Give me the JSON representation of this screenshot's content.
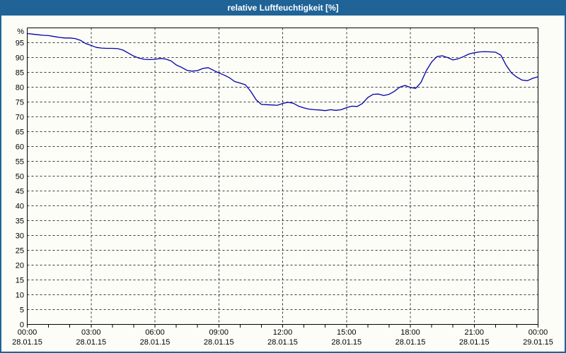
{
  "window": {
    "title": "relative Luftfeuchtigkeit [%]"
  },
  "colors": {
    "titlebar": "#1f6397",
    "frame": "#1f6397",
    "background": "#fdfdf8",
    "grid": "#3c3c3c",
    "axis": "#000000",
    "series": "#0000a8",
    "title_text": "#ffffff"
  },
  "chart_data": {
    "type": "line",
    "title": "relative Luftfeuchtigkeit [%]",
    "ylabel": "%",
    "ylim": [
      0,
      100
    ],
    "ytick_step": 5,
    "ytick_label_max": 95,
    "grid": "dashed",
    "legend": "none",
    "x_hours_range": [
      0,
      24
    ],
    "x_minor_tick_every_hours": 1,
    "x_major_ticks": [
      {
        "hour": 0,
        "time": "00:00",
        "date": "28.01.15"
      },
      {
        "hour": 3,
        "time": "03:00",
        "date": "28.01.15"
      },
      {
        "hour": 6,
        "time": "06:00",
        "date": "28.01.15"
      },
      {
        "hour": 9,
        "time": "09:00",
        "date": "28.01.15"
      },
      {
        "hour": 12,
        "time": "12:00",
        "date": "28.01.15"
      },
      {
        "hour": 15,
        "time": "15:00",
        "date": "28.01.15"
      },
      {
        "hour": 18,
        "time": "18:00",
        "date": "28.01.15"
      },
      {
        "hour": 21,
        "time": "21:00",
        "date": "28.01.15"
      },
      {
        "hour": 24,
        "time": "00:00",
        "date": "29.01.15"
      }
    ],
    "series": [
      {
        "name": "relative Luftfeuchtigkeit [%]",
        "color": "#0000a8",
        "points_hour_value": [
          [
            0,
            98.1
          ],
          [
            0.25,
            97.9
          ],
          [
            0.5,
            97.7
          ],
          [
            0.75,
            97.5
          ],
          [
            1,
            97.4
          ],
          [
            1.25,
            97.1
          ],
          [
            1.5,
            96.8
          ],
          [
            1.75,
            96.6
          ],
          [
            2,
            96.6
          ],
          [
            2.25,
            96.4
          ],
          [
            2.5,
            95.8
          ],
          [
            2.75,
            94.7
          ],
          [
            3,
            94.1
          ],
          [
            3.25,
            93.4
          ],
          [
            3.5,
            93.2
          ],
          [
            3.75,
            93.1
          ],
          [
            4,
            93.1
          ],
          [
            4.25,
            93
          ],
          [
            4.5,
            92.5
          ],
          [
            4.75,
            91.5
          ],
          [
            5,
            90.5
          ],
          [
            5.25,
            89.8
          ],
          [
            5.5,
            89.4
          ],
          [
            5.75,
            89.3
          ],
          [
            6,
            89.4
          ],
          [
            6.25,
            89.7
          ],
          [
            6.5,
            89.5
          ],
          [
            6.75,
            88.9
          ],
          [
            7,
            87.5
          ],
          [
            7.25,
            86.7
          ],
          [
            7.5,
            85.7
          ],
          [
            7.75,
            85.4
          ],
          [
            8,
            85.6
          ],
          [
            8.25,
            86.3
          ],
          [
            8.5,
            86.6
          ],
          [
            8.75,
            85.7
          ],
          [
            9,
            84.8
          ],
          [
            9.25,
            84.1
          ],
          [
            9.5,
            83.2
          ],
          [
            9.75,
            81.9
          ],
          [
            10,
            81.4
          ],
          [
            10.25,
            80.8
          ],
          [
            10.5,
            78.6
          ],
          [
            10.75,
            75.8
          ],
          [
            11,
            74.2
          ],
          [
            11.25,
            74.1
          ],
          [
            11.5,
            74
          ],
          [
            11.75,
            73.9
          ],
          [
            12,
            74.5
          ],
          [
            12.25,
            74.9
          ],
          [
            12.5,
            74.6
          ],
          [
            12.75,
            73.6
          ],
          [
            13,
            73
          ],
          [
            13.25,
            72.6
          ],
          [
            13.5,
            72.4
          ],
          [
            13.75,
            72.3
          ],
          [
            14,
            72.1
          ],
          [
            14.25,
            72.4
          ],
          [
            14.5,
            72.2
          ],
          [
            14.75,
            72.4
          ],
          [
            15,
            73.1
          ],
          [
            15.25,
            73.6
          ],
          [
            15.5,
            73.5
          ],
          [
            15.75,
            74.5
          ],
          [
            16,
            76.5
          ],
          [
            16.25,
            77.6
          ],
          [
            16.5,
            77.7
          ],
          [
            16.75,
            77.2
          ],
          [
            17,
            77.6
          ],
          [
            17.25,
            78.6
          ],
          [
            17.5,
            80
          ],
          [
            17.75,
            80.6
          ],
          [
            18,
            79.9
          ],
          [
            18.25,
            79.6
          ],
          [
            18.5,
            81.6
          ],
          [
            18.75,
            85.6
          ],
          [
            19,
            88.5
          ],
          [
            19.25,
            90.3
          ],
          [
            19.5,
            90.6
          ],
          [
            19.75,
            90
          ],
          [
            20,
            89.2
          ],
          [
            20.25,
            89.6
          ],
          [
            20.5,
            90.3
          ],
          [
            20.75,
            91.2
          ],
          [
            21,
            91.6
          ],
          [
            21.25,
            91.9
          ],
          [
            21.5,
            92
          ],
          [
            21.75,
            91.9
          ],
          [
            22,
            91.8
          ],
          [
            22.25,
            90.8
          ],
          [
            22.5,
            87.4
          ],
          [
            22.75,
            84.8
          ],
          [
            23,
            83.4
          ],
          [
            23.25,
            82.4
          ],
          [
            23.5,
            82.2
          ],
          [
            23.75,
            83
          ],
          [
            24,
            83.5
          ]
        ]
      }
    ]
  }
}
